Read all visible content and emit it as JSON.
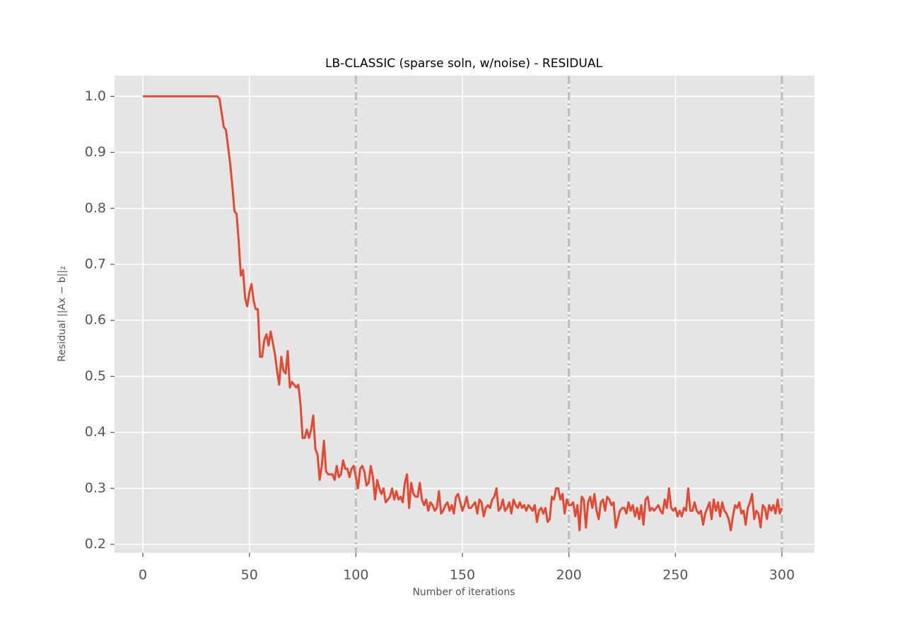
{
  "chart_data": {
    "type": "line",
    "title": "LB-CLASSIC (sparse soln, w/noise) - RESIDUAL",
    "xlabel": "Number of iterations",
    "ylabel": "Residual ||Ax − b||₂",
    "color": "#e24a33",
    "grid": true,
    "vlines": [
      100,
      200,
      300
    ],
    "vline_color": "#bdbdbd",
    "xlim": [
      -13.3,
      315.3
    ],
    "ylim": [
      0.185,
      1.037
    ],
    "xticks": [
      0,
      50,
      100,
      150,
      200,
      250,
      300
    ],
    "yticks": [
      0.2,
      0.3,
      0.4,
      0.5,
      0.6,
      0.7,
      0.8,
      0.9,
      {
        "value": 1,
        "label": "1.0"
      }
    ],
    "x": [
      0,
      1,
      2,
      3,
      4,
      5,
      6,
      7,
      8,
      9,
      10,
      11,
      12,
      13,
      14,
      15,
      16,
      17,
      18,
      19,
      20,
      21,
      22,
      23,
      24,
      25,
      26,
      27,
      28,
      29,
      30,
      31,
      32,
      33,
      34,
      35,
      36,
      37,
      38,
      39,
      40,
      41,
      42,
      43,
      44,
      45,
      46,
      47,
      48,
      49,
      50,
      51,
      52,
      53,
      54,
      55,
      56,
      57,
      58,
      59,
      60,
      61,
      62,
      63,
      64,
      65,
      66,
      67,
      68,
      69,
      70,
      71,
      72,
      73,
      74,
      75,
      76,
      77,
      78,
      79,
      80,
      81,
      82,
      83,
      84,
      85,
      86,
      87,
      88,
      89,
      90,
      91,
      92,
      93,
      94,
      95,
      96,
      97,
      98,
      99,
      100,
      101,
      102,
      103,
      104,
      105,
      106,
      107,
      108,
      109,
      110,
      111,
      112,
      113,
      114,
      115,
      116,
      117,
      118,
      119,
      120,
      121,
      122,
      123,
      124,
      125,
      126,
      127,
      128,
      129,
      130,
      131,
      132,
      133,
      134,
      135,
      136,
      137,
      138,
      139,
      140,
      141,
      142,
      143,
      144,
      145,
      146,
      147,
      148,
      149,
      150,
      151,
      152,
      153,
      154,
      155,
      156,
      157,
      158,
      159,
      160,
      161,
      162,
      163,
      164,
      165,
      166,
      167,
      168,
      169,
      170,
      171,
      172,
      173,
      174,
      175,
      176,
      177,
      178,
      179,
      180,
      181,
      182,
      183,
      184,
      185,
      186,
      187,
      188,
      189,
      190,
      191,
      192,
      193,
      194,
      195,
      196,
      197,
      198,
      199,
      200,
      201,
      202,
      203,
      204,
      205,
      206,
      207,
      208,
      209,
      210,
      211,
      212,
      213,
      214,
      215,
      216,
      217,
      218,
      219,
      220,
      221,
      222,
      223,
      224,
      225,
      226,
      227,
      228,
      229,
      230,
      231,
      232,
      233,
      234,
      235,
      236,
      237,
      238,
      239,
      240,
      241,
      242,
      243,
      244,
      245,
      246,
      247,
      248,
      249,
      250,
      251,
      252,
      253,
      254,
      255,
      256,
      257,
      258,
      259,
      260,
      261,
      262,
      263,
      264,
      265,
      266,
      267,
      268,
      269,
      270,
      271,
      272,
      273,
      274,
      275,
      276,
      277,
      278,
      279,
      280,
      281,
      282,
      283,
      284,
      285,
      286,
      287,
      288,
      289,
      290,
      291,
      292,
      293,
      294,
      295,
      296,
      297,
      298,
      299,
      300
    ],
    "values": [
      1,
      1,
      1,
      1,
      1,
      1,
      1,
      1,
      1,
      1,
      1,
      1,
      1,
      1,
      1,
      1,
      1,
      1,
      1,
      1,
      1,
      1,
      1,
      1,
      1,
      1,
      1,
      1,
      1,
      1,
      1,
      1,
      1,
      1,
      1,
      1,
      0.995,
      0.97,
      0.945,
      0.94,
      0.91,
      0.88,
      0.84,
      0.795,
      0.79,
      0.74,
      0.68,
      0.69,
      0.64,
      0.625,
      0.65,
      0.665,
      0.635,
      0.62,
      0.62,
      0.535,
      0.535,
      0.565,
      0.575,
      0.555,
      0.58,
      0.56,
      0.54,
      0.51,
      0.485,
      0.535,
      0.51,
      0.505,
      0.545,
      0.48,
      0.49,
      0.485,
      0.48,
      0.485,
      0.45,
      0.39,
      0.39,
      0.405,
      0.39,
      0.405,
      0.43,
      0.37,
      0.36,
      0.315,
      0.34,
      0.385,
      0.33,
      0.325,
      0.325,
      0.325,
      0.315,
      0.34,
      0.32,
      0.325,
      0.35,
      0.335,
      0.335,
      0.32,
      0.335,
      0.34,
      0.32,
      0.3,
      0.335,
      0.34,
      0.33,
      0.305,
      0.31,
      0.34,
      0.32,
      0.28,
      0.315,
      0.3,
      0.29,
      0.3,
      0.275,
      0.28,
      0.285,
      0.3,
      0.28,
      0.295,
      0.28,
      0.285,
      0.275,
      0.31,
      0.325,
      0.265,
      0.31,
      0.29,
      0.285,
      0.285,
      0.31,
      0.28,
      0.27,
      0.28,
      0.26,
      0.275,
      0.27,
      0.26,
      0.265,
      0.295,
      0.255,
      0.26,
      0.27,
      0.275,
      0.26,
      0.27,
      0.255,
      0.285,
      0.29,
      0.275,
      0.26,
      0.27,
      0.285,
      0.265,
      0.265,
      0.27,
      0.275,
      0.255,
      0.28,
      0.275,
      0.25,
      0.265,
      0.27,
      0.265,
      0.28,
      0.285,
      0.3,
      0.26,
      0.265,
      0.28,
      0.26,
      0.265,
      0.275,
      0.255,
      0.28,
      0.27,
      0.265,
      0.275,
      0.265,
      0.27,
      0.26,
      0.27,
      0.265,
      0.26,
      0.27,
      0.24,
      0.26,
      0.265,
      0.255,
      0.265,
      0.24,
      0.245,
      0.285,
      0.28,
      0.3,
      0.3,
      0.28,
      0.29,
      0.255,
      0.28,
      0.27,
      0.27,
      0.275,
      0.25,
      0.27,
      0.225,
      0.285,
      0.28,
      0.23,
      0.275,
      0.285,
      0.265,
      0.29,
      0.26,
      0.245,
      0.275,
      0.28,
      0.26,
      0.285,
      0.28,
      0.27,
      0.275,
      0.23,
      0.245,
      0.26,
      0.265,
      0.265,
      0.255,
      0.275,
      0.26,
      0.27,
      0.25,
      0.265,
      0.245,
      0.27,
      0.235,
      0.28,
      0.285,
      0.26,
      0.265,
      0.26,
      0.265,
      0.27,
      0.26,
      0.255,
      0.28,
      0.265,
      0.3,
      0.265,
      0.26,
      0.265,
      0.25,
      0.26,
      0.25,
      0.265,
      0.26,
      0.3,
      0.26,
      0.26,
      0.275,
      0.26,
      0.255,
      0.26,
      0.235,
      0.255,
      0.265,
      0.275,
      0.245,
      0.28,
      0.26,
      0.275,
      0.25,
      0.275,
      0.26,
      0.255,
      0.245,
      0.225,
      0.25,
      0.27,
      0.265,
      0.275,
      0.255,
      0.26,
      0.235,
      0.265,
      0.275,
      0.29,
      0.245,
      0.26,
      0.255,
      0.23,
      0.27,
      0.265,
      0.245,
      0.27,
      0.26,
      0.27,
      0.255,
      0.28,
      0.255,
      0.265
    ]
  }
}
